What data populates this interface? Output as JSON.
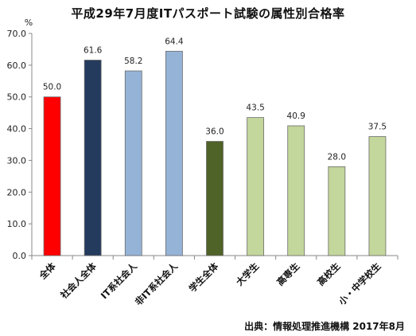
{
  "chart_data": {
    "type": "bar",
    "title": "平成29年7月度ITパスポート試験の属性別合格率",
    "ylabel": "%",
    "ylim": [
      0,
      70
    ],
    "yticks": [
      0.0,
      10.0,
      20.0,
      30.0,
      40.0,
      50.0,
      60.0,
      70.0
    ],
    "grid": false,
    "categories": [
      "全体",
      "社会人全体",
      "IT系社会人",
      "非IT系社会人",
      "学生全体",
      "大学生",
      "高専生",
      "高校生",
      "小・中学校生"
    ],
    "values": [
      50.0,
      61.6,
      58.2,
      64.4,
      36.0,
      43.5,
      40.9,
      28.0,
      37.5
    ],
    "colors": [
      "#ff0000",
      "#243b5e",
      "#95b3d7",
      "#95b3d7",
      "#4f6228",
      "#c3d69b",
      "#c3d69b",
      "#c3d69b",
      "#c3d69b"
    ]
  },
  "source": "出典：情報処理推進機構 2017年8月"
}
